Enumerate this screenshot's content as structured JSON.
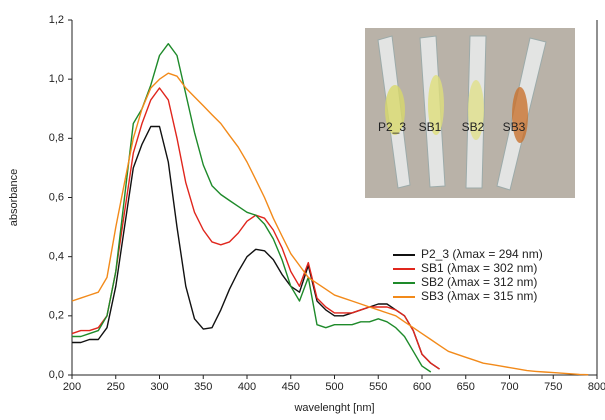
{
  "chart_data": {
    "type": "line",
    "x_label": "wavelenght [nm]",
    "y_label": "absorbance",
    "xlim": [
      200,
      800
    ],
    "xticks": [
      200,
      250,
      300,
      350,
      400,
      450,
      500,
      550,
      600,
      650,
      700,
      750,
      800
    ],
    "ylim": [
      0,
      1.2
    ],
    "yticks": [
      {
        "value": 0,
        "label": "0,0"
      },
      {
        "value": 0.2,
        "label": "0,2"
      },
      {
        "value": 0.4,
        "label": "0,4"
      },
      {
        "value": 0.6,
        "label": "0,6"
      },
      {
        "value": 0.8,
        "label": "0,8"
      },
      {
        "value": 1.0,
        "label": "1,0"
      },
      {
        "value": 1.2,
        "label": "1,2"
      }
    ],
    "grid": false,
    "legend_position": "right",
    "inset_labels": [
      "P2_3",
      "SB1",
      "SB2",
      "SB3"
    ],
    "x": [
      200,
      210,
      220,
      230,
      240,
      250,
      260,
      270,
      280,
      290,
      300,
      310,
      320,
      330,
      340,
      350,
      360,
      370,
      380,
      390,
      400,
      410,
      420,
      430,
      440,
      450,
      460,
      470,
      480,
      490,
      500,
      510,
      520,
      530,
      540,
      550,
      560,
      570,
      580,
      590,
      600,
      610,
      620,
      630,
      640,
      650,
      660,
      670,
      680,
      690,
      700,
      710,
      720,
      730,
      740,
      750,
      760,
      770,
      780,
      790,
      800
    ],
    "series": [
      {
        "name": "P2_3 (λmax = 294 nm)",
        "color": "#111111",
        "values": [
          0.11,
          0.11,
          0.12,
          0.12,
          0.16,
          0.3,
          0.5,
          0.7,
          0.78,
          0.84,
          0.84,
          0.72,
          0.5,
          0.3,
          0.19,
          0.155,
          0.16,
          0.22,
          0.29,
          0.35,
          0.4,
          0.425,
          0.42,
          0.39,
          0.34,
          0.3,
          0.28,
          0.37,
          0.25,
          0.22,
          0.2,
          0.2,
          0.21,
          0.22,
          0.23,
          0.24,
          0.24,
          0.22,
          0.2,
          0.15,
          0.07,
          0.04,
          0.02,
          null,
          null,
          null,
          null,
          null,
          null,
          null,
          null,
          null,
          null,
          null,
          null,
          null,
          null,
          null,
          null,
          null,
          null
        ]
      },
      {
        "name": "SB1 (λmax = 302 nm)",
        "color": "#e0261d",
        "values": [
          0.14,
          0.15,
          0.15,
          0.16,
          0.2,
          0.35,
          0.55,
          0.75,
          0.85,
          0.93,
          0.97,
          0.93,
          0.8,
          0.65,
          0.55,
          0.49,
          0.45,
          0.44,
          0.45,
          0.48,
          0.52,
          0.54,
          0.53,
          0.49,
          0.43,
          0.35,
          0.3,
          0.38,
          0.26,
          0.23,
          0.21,
          0.21,
          0.21,
          0.22,
          0.23,
          0.23,
          0.23,
          0.22,
          0.2,
          0.15,
          0.07,
          0.04,
          0.02,
          null,
          null,
          null,
          null,
          null,
          null,
          null,
          null,
          null,
          null,
          null,
          null,
          null,
          null,
          null,
          null,
          null,
          null
        ]
      },
      {
        "name": "SB2 (λmax = 312 nm)",
        "color": "#1e8a2a",
        "values": [
          0.13,
          0.13,
          0.14,
          0.15,
          0.2,
          0.35,
          0.6,
          0.85,
          0.9,
          0.98,
          1.08,
          1.12,
          1.08,
          0.95,
          0.82,
          0.71,
          0.64,
          0.61,
          0.59,
          0.57,
          0.55,
          0.54,
          0.51,
          0.46,
          0.39,
          0.3,
          0.25,
          0.33,
          0.17,
          0.16,
          0.17,
          0.17,
          0.17,
          0.18,
          0.18,
          0.19,
          0.18,
          0.16,
          0.13,
          0.08,
          0.03,
          0.01,
          null,
          null,
          null,
          null,
          null,
          null,
          null,
          null,
          null,
          null,
          null,
          null,
          null,
          null,
          null,
          null,
          null,
          null,
          null
        ]
      },
      {
        "name": "SB3 (λmax = 315 nm)",
        "color": "#f28a1a",
        "values": [
          0.25,
          0.26,
          0.27,
          0.28,
          0.33,
          0.5,
          0.65,
          0.8,
          0.9,
          0.97,
          1.0,
          1.02,
          1.01,
          0.97,
          0.94,
          0.91,
          0.88,
          0.85,
          0.81,
          0.77,
          0.72,
          0.66,
          0.6,
          0.53,
          0.47,
          0.41,
          0.37,
          0.33,
          0.31,
          0.29,
          0.27,
          0.26,
          0.25,
          0.24,
          0.23,
          0.22,
          0.21,
          0.2,
          0.18,
          0.16,
          0.14,
          0.12,
          0.1,
          0.08,
          0.07,
          0.06,
          0.05,
          0.04,
          0.035,
          0.03,
          0.025,
          0.02,
          0.015,
          0.012,
          0.01,
          0.008,
          0.006,
          0.004,
          0.002,
          0.001,
          null
        ]
      }
    ]
  }
}
